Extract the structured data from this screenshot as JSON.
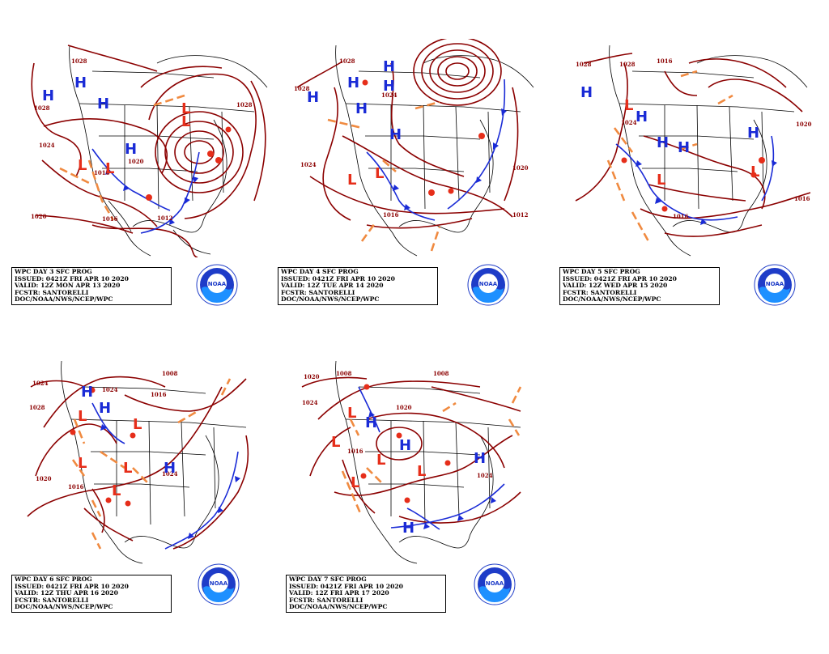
{
  "colors": {
    "isobar": "#8b0000",
    "high": "#1a2bd6",
    "low": "#e62e1a",
    "trough": "#f08a40",
    "front_cold": "#1a2bd6",
    "front_warm": "#e62e1a",
    "noaa_blue": "#1e90ff"
  },
  "logo": {
    "text": "NOAA"
  },
  "panels": [
    {
      "id": "day3",
      "lines": [
        "WPC DAY 3 SFC PROG",
        "ISSUED: 0421Z FRI APR 10 2020",
        "VALID: 12Z MON APR 13 2020",
        "FCSTR: SANTORELLI",
        "DOC/NOAA/NWS/NCEP/WPC"
      ],
      "highs": [
        [
          60,
          115
        ],
        [
          100,
          100
        ],
        [
          128,
          126
        ],
        [
          160,
          183
        ]
      ],
      "lows": [
        [
          103,
          202
        ],
        [
          136,
          205
        ],
        [
          232,
          132
        ],
        [
          228,
          149
        ]
      ],
      "isobars": [
        "1028",
        "1028",
        "1024",
        "1016",
        "1016",
        "1012",
        "1020",
        "1020",
        "1028"
      ]
    },
    {
      "id": "day4",
      "lines": [
        "WPC DAY 4 SFC PROG",
        "ISSUED: 0421Z FRI APR 10 2020",
        "VALID: 12Z TUE APR 14 2020",
        "FCSTR: SANTORELLI",
        "DOC/NOAA/NWS/NCEP/WPC"
      ],
      "highs": [
        [
          46,
          118
        ],
        [
          96,
          80
        ],
        [
          104,
          131
        ],
        [
          137,
          80
        ],
        [
          147,
          162
        ]
      ],
      "lows": [
        [
          92,
          100
        ],
        [
          92,
          220
        ],
        [
          126,
          212
        ]
      ],
      "isobars": [
        "1028",
        "1028",
        "1024",
        "1024",
        "1016",
        "1020",
        "1012"
      ]
    },
    {
      "id": "day5",
      "lines": [
        "WPC DAY 5 SFC PROG",
        "ISSUED: 0421Z FRI APR 10 2020",
        "VALID: 12Z WED APR 15 2020",
        "FCSTR: SANTORELLI",
        "DOC/NOAA/NWS/NCEP/WPC"
      ],
      "highs": [
        [
          33,
          113
        ],
        [
          102,
          144
        ],
        [
          130,
          176
        ],
        [
          154,
          180
        ],
        [
          240,
          162
        ]
      ],
      "lows": [
        [
          88,
          125
        ],
        [
          128,
          218
        ],
        [
          244,
          210
        ]
      ],
      "isobars": [
        "1028",
        "1028",
        "1024",
        "1016",
        "1020",
        "1016",
        "1016"
      ]
    },
    {
      "id": "day6",
      "lines": [
        "WPC DAY 6 SFC PROG",
        "ISSUED: 0421Z FRI APR 10 2020",
        "VALID: 12Z THU APR 16 2020",
        "FCSTR: SANTORELLI",
        "DOC/NOAA/NWS/NCEP/WPC"
      ],
      "highs": [
        [
          93,
          50
        ],
        [
          115,
          72
        ],
        [
          195,
          144
        ]
      ],
      "lows": [
        [
          89,
          82
        ],
        [
          157,
          90
        ],
        [
          87,
          139
        ],
        [
          145,
          146
        ],
        [
          130,
          174
        ]
      ],
      "isobars": [
        "1024",
        "1028",
        "1024",
        "1016",
        "1008",
        "1020",
        "1016",
        "1024"
      ]
    },
    {
      "id": "day7",
      "lines": [
        "WPC DAY 7 SFC PROG",
        "ISSUED: 0421Z FRI APR 10 2020",
        "VALID: 12Z FRI APR 17 2020",
        "FCSTR: SANTORELLI",
        "DOC/NOAA/NWS/NCEP/WPC"
      ],
      "highs": [
        [
          66,
          77
        ],
        [
          88,
          72
        ],
        [
          134,
          114
        ],
        [
          222,
          130
        ],
        [
          134,
          208
        ]
      ],
      "lows": [
        [
          41,
          109
        ],
        [
          66,
          84
        ],
        [
          96,
          124
        ],
        [
          66,
          150
        ],
        [
          104,
          128
        ]
      ],
      "isobars": [
        "1020",
        "1008",
        "1008",
        "1024",
        "1016",
        "1020",
        "1024"
      ]
    }
  ]
}
